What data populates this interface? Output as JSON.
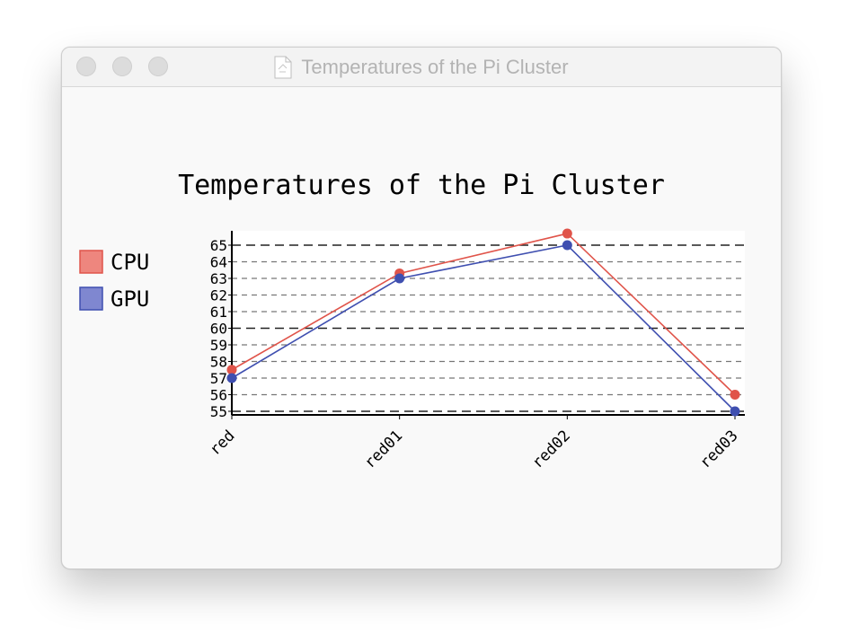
{
  "window": {
    "title": "Temperatures of the Pi Cluster",
    "title_icon": "document-icon"
  },
  "chart_data": {
    "type": "line",
    "title": "Temperatures of the Pi Cluster",
    "xlabel": "",
    "ylabel": "",
    "categories": [
      "red",
      "red01",
      "red02",
      "red03"
    ],
    "ylim": [
      55,
      65
    ],
    "yticks": [
      "55",
      "56",
      "57",
      "58",
      "59",
      "60",
      "61",
      "62",
      "63",
      "64",
      "65"
    ],
    "grid": true,
    "legend_position": "left",
    "series": [
      {
        "name": "CPU",
        "values": [
          57.5,
          63.3,
          65.7,
          56.0
        ],
        "color": "#e0544a",
        "legend_fill": "#ee867e"
      },
      {
        "name": "GPU",
        "values": [
          57.0,
          63.0,
          65.0,
          55.0
        ],
        "color": "#3f4fb0",
        "legend_fill": "#7f87d0"
      }
    ]
  }
}
